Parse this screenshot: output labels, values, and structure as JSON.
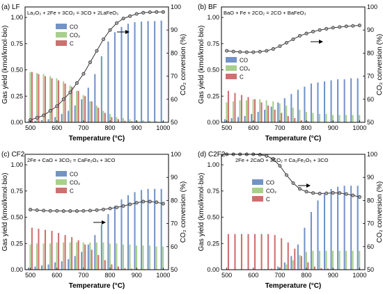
{
  "colors": {
    "CO": "#7393c7",
    "CO2": "#a9cf8f",
    "C": "#cf6f6f",
    "line": "#333333",
    "marker": "#aaaaaa"
  },
  "chart_data": [
    {
      "type": "bar",
      "panel_label": "(a) LF",
      "equation": "La₂O₃ + 2Fe + 3CO₂ = 3CO + 2LaFeO₃",
      "xlabel": "Temperature (°C)",
      "ylabel": "Gas yield (kmol/kmol·bio)",
      "y2label": "CO₂ conversion (%)",
      "xlim": [
        480,
        1020
      ],
      "xticks": [
        500,
        600,
        700,
        800,
        900,
        1000
      ],
      "ylim": [
        0,
        1.1
      ],
      "yticks": [
        "0.00",
        "0.25",
        "0.50",
        "0.75",
        "1.00"
      ],
      "y2lim": [
        50,
        100
      ],
      "y2ticks": [
        50,
        60,
        70,
        80,
        90,
        100
      ],
      "legend": [
        "CO",
        "CO₂",
        "C"
      ],
      "x": [
        500,
        525,
        550,
        575,
        600,
        625,
        650,
        675,
        700,
        725,
        750,
        775,
        800,
        825,
        850,
        875,
        900,
        925,
        950,
        975,
        1000
      ],
      "series": [
        {
          "name": "CO",
          "values": [
            0.01,
            0.015,
            0.02,
            0.03,
            0.05,
            0.08,
            0.11,
            0.16,
            0.22,
            0.33,
            0.46,
            0.63,
            0.77,
            0.86,
            0.91,
            0.94,
            0.955,
            0.96,
            0.965,
            0.965,
            0.97
          ]
        },
        {
          "name": "CO₂",
          "values": [
            0.48,
            0.47,
            0.46,
            0.44,
            0.42,
            0.39,
            0.35,
            0.3,
            0.26,
            0.2,
            0.16,
            0.11,
            0.08,
            0.05,
            0.04,
            0.03,
            0.02,
            0.02,
            0.015,
            0.01,
            0.01
          ]
        },
        {
          "name": "C",
          "values": [
            0.48,
            0.46,
            0.44,
            0.42,
            0.4,
            0.37,
            0.34,
            0.3,
            0.25,
            0.2,
            0.14,
            0.09,
            0.05,
            0.03,
            0.015,
            0.01,
            0.005,
            0.005,
            0.0,
            0.0,
            0.0
          ]
        }
      ],
      "conversion_line": [
        51,
        52,
        53,
        55,
        57,
        60,
        63,
        67,
        71,
        76,
        81,
        86,
        90,
        93,
        95,
        96,
        97,
        97.5,
        97.7,
        97.8,
        97.8
      ],
      "arrow_text": "→"
    },
    {
      "type": "bar",
      "panel_label": "(b) BF",
      "equation": "BaO + Fe + 2CO₂ = 2CO + BaFeO₃",
      "xlabel": "Temperature (°C)",
      "ylabel": "Gas yield (kmol/kmol·bio)",
      "y2label": "CO₂ conversion (%)",
      "xlim": [
        480,
        1020
      ],
      "xticks": [
        500,
        600,
        700,
        800,
        900,
        1000
      ],
      "ylim": [
        0,
        1.1
      ],
      "yticks": [
        "0.00",
        "0.25",
        "0.50",
        "0.75",
        "1.00"
      ],
      "y2lim": [
        50,
        100
      ],
      "y2ticks": [
        50,
        60,
        70,
        80,
        90,
        100
      ],
      "legend": [
        "CO",
        "CO₂",
        "C"
      ],
      "x": [
        500,
        525,
        550,
        575,
        600,
        625,
        650,
        675,
        700,
        725,
        750,
        775,
        800,
        825,
        850,
        875,
        900,
        925,
        950,
        975,
        1000
      ],
      "series": [
        {
          "name": "CO",
          "values": [
            0.03,
            0.04,
            0.05,
            0.06,
            0.08,
            0.1,
            0.12,
            0.15,
            0.19,
            0.23,
            0.27,
            0.31,
            0.34,
            0.37,
            0.38,
            0.39,
            0.4,
            0.41,
            0.41,
            0.42,
            0.42
          ]
        },
        {
          "name": "CO₂",
          "values": [
            0.19,
            0.2,
            0.21,
            0.21,
            0.22,
            0.22,
            0.21,
            0.2,
            0.18,
            0.16,
            0.14,
            0.12,
            0.1,
            0.09,
            0.08,
            0.08,
            0.07,
            0.07,
            0.07,
            0.07,
            0.07
          ]
        },
        {
          "name": "C",
          "values": [
            0.3,
            0.28,
            0.26,
            0.24,
            0.22,
            0.19,
            0.16,
            0.12,
            0.09,
            0.06,
            0.04,
            0.02,
            0.01,
            0.005,
            0.0,
            0.0,
            0.0,
            0.0,
            0.0,
            0.0,
            0.0
          ]
        }
      ],
      "conversion_line": [
        81,
        80.7,
        80.5,
        80.4,
        80.4,
        80.6,
        81,
        81.8,
        83,
        84.5,
        86,
        87.5,
        88.5,
        89.3,
        90,
        90.5,
        91,
        91.3,
        91.6,
        91.8,
        92
      ],
      "arrow_text": "→"
    },
    {
      "type": "bar",
      "panel_label": "(c) CF2",
      "equation": "2Fe + CaO + 3CO₂ = CaFe₂O₄ + 3CO",
      "xlabel": "Temperature (°C)",
      "ylabel": "Gas yield (kmol/kmol·bio)",
      "y2label": "CO₂ conversion (%)",
      "xlim": [
        480,
        1020
      ],
      "xticks": [
        500,
        600,
        700,
        800,
        900,
        1000
      ],
      "ylim": [
        0,
        1.1
      ],
      "yticks": [
        "0.00",
        "0.25",
        "0.50",
        "0.75",
        "1.00"
      ],
      "y2lim": [
        50,
        100
      ],
      "y2ticks": [
        50,
        60,
        70,
        80,
        90,
        100
      ],
      "legend": [
        "CO",
        "CO₂",
        "C"
      ],
      "x": [
        500,
        525,
        550,
        575,
        600,
        625,
        650,
        675,
        700,
        725,
        750,
        775,
        800,
        825,
        850,
        875,
        900,
        925,
        950,
        975,
        1000
      ],
      "series": [
        {
          "name": "CO",
          "values": [
            0.02,
            0.03,
            0.04,
            0.05,
            0.07,
            0.08,
            0.1,
            0.13,
            0.17,
            0.24,
            0.33,
            0.43,
            0.53,
            0.61,
            0.67,
            0.71,
            0.74,
            0.76,
            0.77,
            0.77,
            0.77
          ]
        },
        {
          "name": "CO₂",
          "values": [
            0.24,
            0.25,
            0.25,
            0.25,
            0.26,
            0.26,
            0.26,
            0.26,
            0.26,
            0.26,
            0.26,
            0.26,
            0.25,
            0.25,
            0.24,
            0.24,
            0.23,
            0.23,
            0.23,
            0.22,
            0.22
          ]
        },
        {
          "name": "C",
          "values": [
            0.4,
            0.39,
            0.38,
            0.37,
            0.35,
            0.33,
            0.31,
            0.28,
            0.24,
            0.19,
            0.14,
            0.09,
            0.05,
            0.03,
            0.015,
            0.01,
            0.005,
            0.005,
            0.0,
            0.0,
            0.0
          ]
        }
      ],
      "conversion_line": [
        76,
        75.8,
        75.6,
        75.5,
        75.5,
        75.4,
        75.4,
        75.4,
        75.5,
        75.6,
        75.8,
        76.1,
        76.5,
        77,
        77.6,
        78.3,
        79,
        79.5,
        79.5,
        79.2,
        78.6
      ],
      "arrow_text": "→"
    },
    {
      "type": "bar",
      "panel_label": "(d) C2F2",
      "equation": "2Fe + 2CaO + 3CO₂ = Ca₂Fe₂O₅ + 3CO",
      "xlabel": "Temperature (°C)",
      "ylabel": "Gas yield (kmol/kmol·bio)",
      "y2label": "CO₂ conversion (%)",
      "xlim": [
        480,
        1020
      ],
      "xticks": [
        500,
        600,
        700,
        800,
        900,
        1000
      ],
      "ylim": [
        0,
        1.1
      ],
      "yticks": [
        "0.00",
        "0.25",
        "0.50",
        "0.75",
        "1.00"
      ],
      "y2lim": [
        50,
        100
      ],
      "y2ticks": [
        50,
        60,
        70,
        80,
        90,
        100
      ],
      "legend": [
        "CO",
        "CO₂",
        "C"
      ],
      "x": [
        500,
        525,
        550,
        575,
        600,
        625,
        650,
        675,
        700,
        725,
        750,
        775,
        800,
        825,
        850,
        875,
        900,
        925,
        950,
        975,
        1000
      ],
      "series": [
        {
          "name": "CO",
          "values": [
            0.0,
            0.0,
            0.0,
            0.0,
            0.0,
            0.0,
            0.005,
            0.01,
            0.03,
            0.07,
            0.13,
            0.24,
            0.4,
            0.55,
            0.66,
            0.72,
            0.77,
            0.79,
            0.8,
            0.8,
            0.8
          ]
        },
        {
          "name": "CO₂",
          "values": [
            0.0,
            0.0,
            0.0,
            0.0,
            0.0,
            0.0,
            0.0,
            0.005,
            0.02,
            0.05,
            0.09,
            0.14,
            0.17,
            0.18,
            0.18,
            0.18,
            0.18,
            0.18,
            0.18,
            0.18,
            0.18
          ]
        },
        {
          "name": "C",
          "values": [
            0.34,
            0.34,
            0.34,
            0.34,
            0.34,
            0.34,
            0.34,
            0.33,
            0.3,
            0.26,
            0.2,
            0.13,
            0.07,
            0.03,
            0.015,
            0.01,
            0.005,
            0.0,
            0.0,
            0.0,
            0.0
          ]
        }
      ],
      "conversion_line": [
        100,
        100,
        100,
        100,
        100,
        99.8,
        99.3,
        98,
        95,
        91,
        87.5,
        85,
        83.8,
        83.2,
        83,
        83.1,
        83.3,
        83.2,
        82.8,
        82.2,
        81.5
      ],
      "arrow_text": "→"
    }
  ]
}
